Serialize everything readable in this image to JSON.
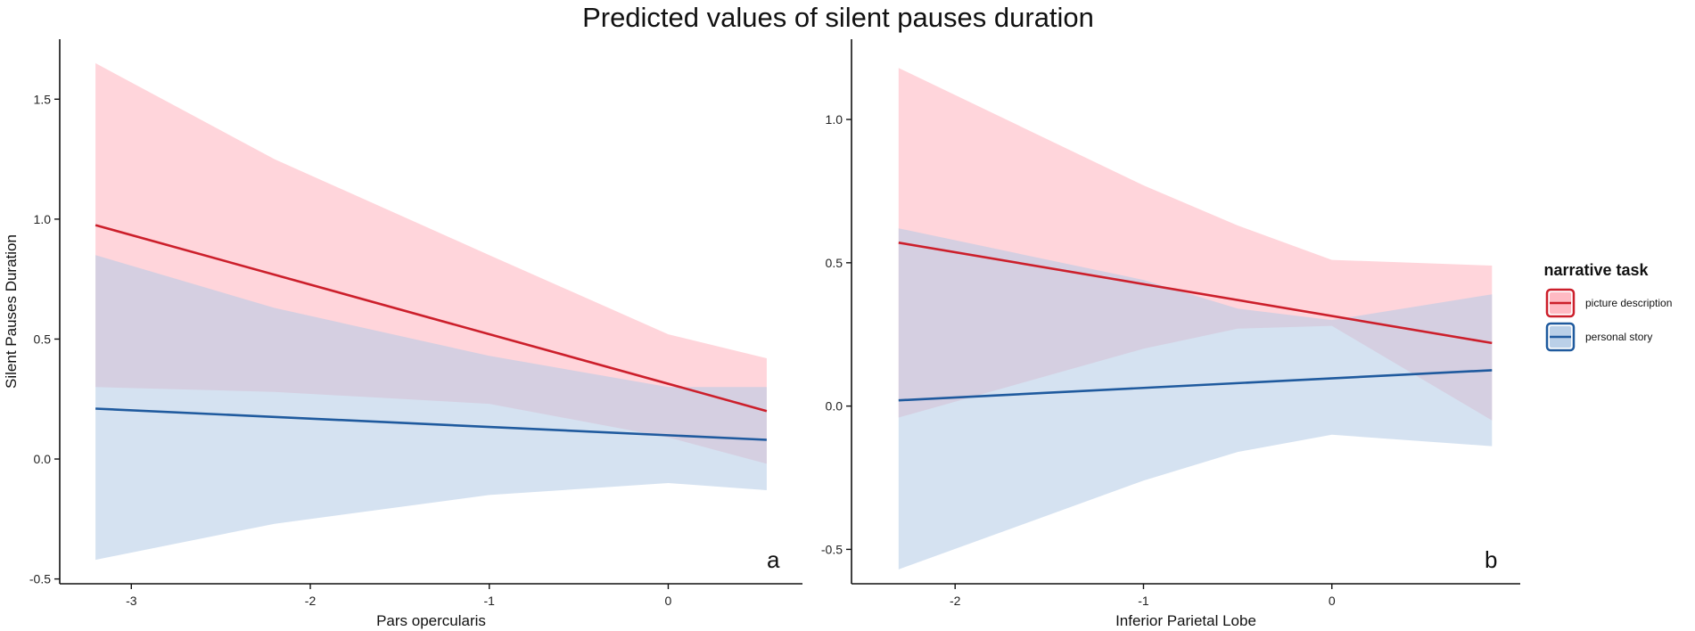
{
  "title": "Predicted values of silent pauses duration",
  "chart_data": [
    {
      "type": "line",
      "panel_tag": "a",
      "xlabel": "Pars opercularis",
      "ylabel": "Silent Pauses Duration",
      "xlim": [
        -3.4,
        0.75
      ],
      "ylim": [
        -0.52,
        1.75
      ],
      "xticks": [
        -3,
        -2,
        -1,
        0
      ],
      "xtick_labels": [
        "-3",
        "-2",
        "-1",
        "0"
      ],
      "yticks": [
        -0.5,
        0.0,
        0.5,
        1.0,
        1.5
      ],
      "ytick_labels": [
        "-0.5",
        "0.0",
        "0.5",
        "1.0",
        "1.5"
      ],
      "grid": false,
      "series": [
        {
          "name": "picture description",
          "color": "#cc1f2b",
          "ribbon_color": "#ffb3bd",
          "x": [
            -3.2,
            0.55
          ],
          "y": [
            0.975,
            0.2
          ],
          "ci": {
            "x": [
              -3.2,
              -2.2,
              -1.0,
              0.0,
              0.55
            ],
            "upper": [
              1.65,
              1.25,
              0.85,
              0.52,
              0.42
            ],
            "lower": [
              0.3,
              0.28,
              0.23,
              0.09,
              -0.02
            ]
          }
        },
        {
          "name": "personal story",
          "color": "#1f5a9e",
          "ribbon_color": "#b3cbe6",
          "x": [
            -3.2,
            0.55
          ],
          "y": [
            0.21,
            0.08
          ],
          "ci": {
            "x": [
              -3.2,
              -2.2,
              -1.0,
              0.0,
              0.55
            ],
            "upper": [
              0.85,
              0.63,
              0.43,
              0.3,
              0.3
            ],
            "lower": [
              -0.42,
              -0.27,
              -0.15,
              -0.1,
              -0.13
            ]
          }
        }
      ]
    },
    {
      "type": "line",
      "panel_tag": "b",
      "xlabel": "Inferior Parietal Lobe",
      "ylabel": "",
      "xlim": [
        -2.55,
        1.0
      ],
      "ylim": [
        -0.62,
        1.28
      ],
      "xticks": [
        -2,
        -1,
        0
      ],
      "xtick_labels": [
        "-2",
        "-1",
        "0"
      ],
      "yticks": [
        -0.5,
        0.0,
        0.5,
        1.0
      ],
      "ytick_labels": [
        "-0.5",
        "0.0",
        "0.5",
        "1.0"
      ],
      "grid": false,
      "series": [
        {
          "name": "picture description",
          "color": "#cc1f2b",
          "ribbon_color": "#ffb3bd",
          "x": [
            -2.3,
            0.85
          ],
          "y": [
            0.57,
            0.22
          ],
          "ci": {
            "x": [
              -2.3,
              -1.0,
              -0.5,
              0.0,
              0.85
            ],
            "upper": [
              1.18,
              0.77,
              0.63,
              0.51,
              0.49
            ],
            "lower": [
              -0.04,
              0.2,
              0.27,
              0.28,
              -0.05
            ]
          }
        },
        {
          "name": "personal story",
          "color": "#1f5a9e",
          "ribbon_color": "#b3cbe6",
          "x": [
            -2.3,
            0.85
          ],
          "y": [
            0.02,
            0.125
          ],
          "ci": {
            "x": [
              -2.3,
              -1.0,
              -0.5,
              0.0,
              0.85
            ],
            "upper": [
              0.62,
              0.44,
              0.34,
              0.3,
              0.39
            ],
            "lower": [
              -0.57,
              -0.26,
              -0.16,
              -0.1,
              -0.14
            ]
          }
        }
      ]
    }
  ],
  "legend": {
    "title": "narrative task",
    "items": [
      {
        "label": "picture description",
        "color": "#cc1f2b",
        "fill": "#ffb3bd"
      },
      {
        "label": "personal story",
        "color": "#1f5a9e",
        "fill": "#b3cbe6"
      }
    ]
  }
}
